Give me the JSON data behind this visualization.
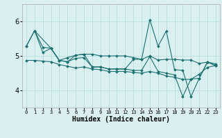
{
  "xlabel": "Humidex (Indice chaleur)",
  "xlim": [
    -0.5,
    23.5
  ],
  "ylim": [
    3.5,
    6.5
  ],
  "yticks": [
    4,
    5,
    6
  ],
  "xticks": [
    0,
    1,
    2,
    3,
    4,
    5,
    6,
    7,
    8,
    9,
    10,
    11,
    12,
    13,
    14,
    15,
    16,
    17,
    18,
    19,
    20,
    21,
    22,
    23
  ],
  "bg_color": "#daf0f0",
  "grid_color": "#b8dede",
  "line_color": "#1a7070",
  "series": [
    {
      "x": [
        0,
        1,
        2,
        3,
        4,
        5,
        6,
        7,
        8,
        9,
        10,
        11,
        12,
        13,
        14,
        15,
        16,
        17,
        18,
        19,
        20,
        21,
        22,
        23
      ],
      "y": [
        5.28,
        5.73,
        5.25,
        5.22,
        4.87,
        4.95,
        5.02,
        5.05,
        5.05,
        5.0,
        5.0,
        5.0,
        5.0,
        4.95,
        4.9,
        5.0,
        4.88,
        4.9,
        4.9,
        4.88,
        4.88,
        4.78,
        4.82,
        4.77
      ]
    },
    {
      "x": [
        0,
        1,
        2,
        3,
        4,
        5,
        6,
        7,
        8,
        9,
        10,
        11,
        12,
        13,
        14,
        15,
        16,
        17,
        18,
        19,
        20,
        21,
        22,
        23
      ],
      "y": [
        4.87,
        4.87,
        4.85,
        4.83,
        4.75,
        4.7,
        4.65,
        4.68,
        4.62,
        4.6,
        4.55,
        4.55,
        4.55,
        4.52,
        4.5,
        4.55,
        4.5,
        4.42,
        4.38,
        4.32,
        4.32,
        4.47,
        4.67,
        4.72
      ]
    },
    {
      "x": [
        0,
        1,
        2,
        3,
        4,
        5,
        6,
        7,
        8,
        9,
        10,
        11,
        12,
        13,
        14,
        15,
        16,
        17,
        18,
        19,
        20,
        21,
        22,
        23
      ],
      "y": [
        5.28,
        5.73,
        5.1,
        5.22,
        4.87,
        4.83,
        4.93,
        4.95,
        4.68,
        4.68,
        4.62,
        4.62,
        4.62,
        4.58,
        4.58,
        4.98,
        4.55,
        4.5,
        4.45,
        3.82,
        4.33,
        4.35,
        4.82,
        4.72
      ]
    },
    {
      "x": [
        1,
        3,
        4,
        5,
        6,
        7,
        8,
        9,
        10,
        11,
        12,
        13,
        14,
        15,
        16,
        17,
        18,
        19,
        20,
        21,
        22,
        23
      ],
      "y": [
        5.73,
        5.22,
        4.87,
        4.83,
        5.02,
        5.05,
        4.68,
        4.68,
        4.62,
        4.62,
        4.62,
        4.9,
        4.9,
        6.05,
        5.28,
        5.72,
        4.6,
        4.58,
        3.82,
        4.35,
        4.82,
        4.72
      ]
    }
  ]
}
